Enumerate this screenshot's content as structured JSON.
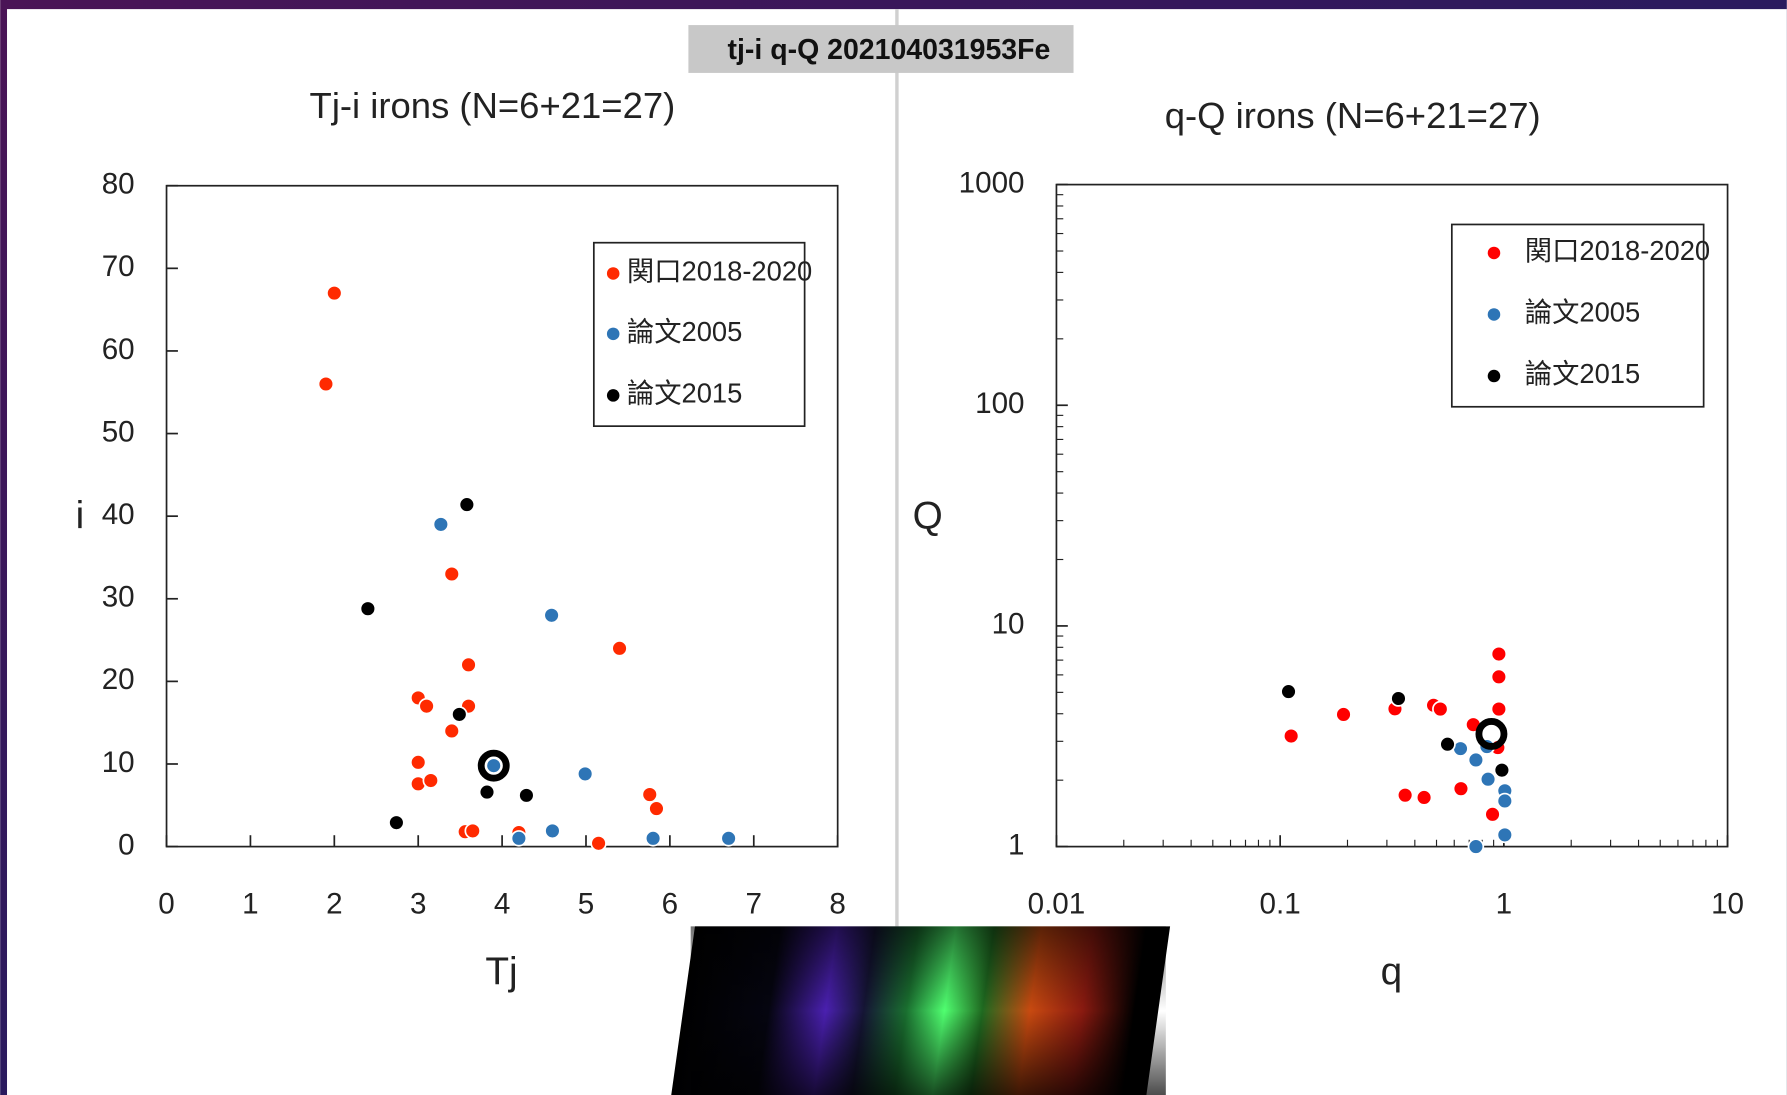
{
  "header": {
    "title": "tj-i q-Q 202104031953Fe"
  },
  "chart_data": [
    {
      "type": "scatter",
      "title": "Tj-i irons (N=6+21=27)",
      "x_label": "Tj",
      "y_label": "i",
      "xlim": [
        0,
        8
      ],
      "ylim": [
        0,
        80
      ],
      "xticks": [
        0,
        1,
        2,
        3,
        4,
        5,
        6,
        7,
        8
      ],
      "yticks": [
        0,
        10,
        20,
        30,
        40,
        50,
        60,
        70,
        80
      ],
      "legend": "upper right",
      "series": [
        {
          "name": "関口2018-2020",
          "color": "#ff2a00",
          "x": [
            2.0,
            1.9,
            3.4,
            5.4,
            3.6,
            3.0,
            3.1,
            3.6,
            3.4,
            3.0,
            3.0,
            3.15,
            5.76,
            5.84,
            3.56,
            3.65,
            4.2,
            5.15
          ],
          "y": [
            67,
            56,
            33,
            24,
            22,
            18,
            17,
            17,
            14,
            10.2,
            7.6,
            8,
            6.3,
            4.6,
            1.8,
            1.9,
            1.7,
            0.4
          ]
        },
        {
          "name": "論文2005",
          "color": "#2e75b6",
          "x": [
            3.27,
            4.59,
            4.99,
            3.9,
            4.2,
            4.6,
            5.8,
            6.7
          ],
          "y": [
            39,
            28,
            8.8,
            9.8,
            1,
            1.9,
            1,
            1
          ]
        },
        {
          "name": "論文2015",
          "color": "#000000",
          "x": [
            3.58,
            2.4,
            3.49,
            4.29,
            3.82,
            2.74
          ],
          "y": [
            41.4,
            28.8,
            16,
            6.2,
            6.6,
            2.9
          ]
        }
      ],
      "highlight": {
        "x": 3.9,
        "y": 9.8
      }
    },
    {
      "type": "scatter",
      "title": "q-Q irons (N=6+21=27)",
      "x_label": "q",
      "y_label": "Q",
      "xscale": "log",
      "yscale": "log",
      "xlim": [
        0.01,
        10
      ],
      "ylim": [
        1,
        1000
      ],
      "xticks": [
        0.01,
        0.1,
        1,
        10
      ],
      "yticks": [
        1,
        10,
        100,
        1000
      ],
      "legend": "upper right",
      "series": [
        {
          "name": "関口2018-2020",
          "color": "#ff0000",
          "x": [
            0.112,
            0.192,
            0.326,
            0.485,
            0.52,
            0.362,
            0.44,
            0.643,
            0.89,
            0.95,
            0.95,
            0.95,
            0.73,
            0.94
          ],
          "y": [
            3.17,
            3.97,
            4.21,
            4.37,
            4.2,
            1.71,
            1.67,
            1.83,
            1.4,
            7.46,
            5.88,
            4.2,
            3.57,
            2.81
          ]
        },
        {
          "name": "論文2005",
          "color": "#2e75b6",
          "x": [
            0.64,
            0.75,
            0.85,
            1.01,
            1.01,
            1.01,
            0.75,
            0.84
          ],
          "y": [
            2.78,
            2.47,
            2.02,
            1.79,
            1.61,
            1.13,
            1.0,
            2.84
          ]
        },
        {
          "name": "論文2015",
          "color": "#000000",
          "x": [
            0.109,
            0.338,
            0.56,
            0.98
          ],
          "y": [
            5.04,
            4.69,
            2.91,
            2.22
          ]
        }
      ],
      "highlight": {
        "x": 0.88,
        "y": 3.24
      }
    }
  ]
}
